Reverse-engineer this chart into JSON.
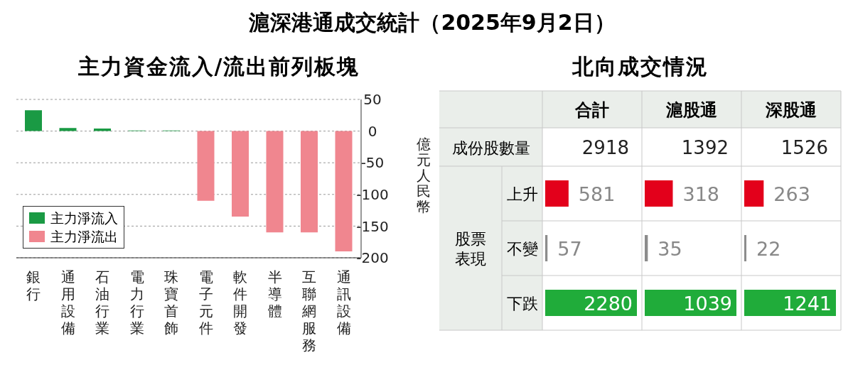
{
  "chart_data": [
    {
      "type": "bar",
      "title": "滬深港通成交統計（2025年9月2日）",
      "subtitle": "主力資金流入/流出前列板塊",
      "ylabel": "億元人民幣",
      "categories": [
        "銀行",
        "通用設備",
        "石油行業",
        "電力行業",
        "珠寶首飾",
        "電子元件",
        "軟件開發",
        "半導體",
        "互聯網服務",
        "通訊設備"
      ],
      "series": [
        {
          "name": "主力淨流入",
          "color": "#1a9a44",
          "values": [
            33,
            5,
            4,
            1,
            1,
            null,
            null,
            null,
            null,
            null
          ]
        },
        {
          "name": "主力淨流出",
          "color": "#f0868f",
          "values": [
            null,
            null,
            null,
            null,
            null,
            -110,
            -135,
            -160,
            -160,
            -190
          ]
        }
      ],
      "ylim": [
        -200,
        50
      ],
      "yticks": [
        -200,
        -150,
        -100,
        -50,
        0,
        50
      ],
      "grid": "y",
      "legend": "bottom left"
    },
    {
      "type": "bar",
      "orientation": "horizontal",
      "title": "北向成交情況",
      "categories": [
        "上升",
        "不變",
        "下跌"
      ],
      "colors": [
        "#e3001b",
        "#8c8c8c",
        "#20ac3a"
      ],
      "series": [
        {
          "name": "合計",
          "values": [
            581,
            57,
            2280
          ]
        }
      ],
      "data_labels": true,
      "annotations": [
        "成份股數量",
        "股票表現",
        "2918"
      ]
    },
    {
      "type": "bar",
      "orientation": "horizontal",
      "categories": [
        null,
        null,
        null
      ],
      "colors": [
        "#e3001b",
        "#8c8c8c",
        "#20ac3a"
      ],
      "series": [
        {
          "name": "滬股通",
          "values": [
            318,
            35,
            1039
          ]
        }
      ],
      "data_labels": true,
      "annotations": [
        "1392"
      ]
    },
    {
      "type": "bar",
      "orientation": "horizontal",
      "categories": [
        null,
        null,
        null
      ],
      "colors": [
        "#e3001b",
        "#8c8c8c",
        "#20ac3a"
      ],
      "series": [
        {
          "name": "深股通",
          "values": [
            263,
            22,
            1241
          ]
        }
      ],
      "data_labels": true,
      "annotations": [
        "1526"
      ]
    }
  ]
}
